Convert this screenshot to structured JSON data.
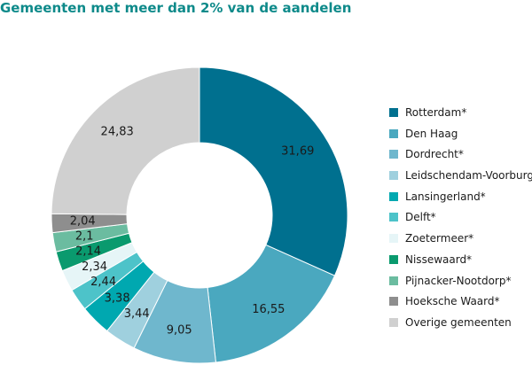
{
  "chart_data": {
    "type": "pie",
    "title": "Gemeenten met meer dan 2% van de aandelen",
    "donut": true,
    "legend_position": "right",
    "slices": [
      {
        "label": "Rotterdam*",
        "value": 31.69,
        "value_label": "31,69",
        "color": "#00708f"
      },
      {
        "label": "Den Haag",
        "value": 16.55,
        "value_label": "16,55",
        "color": "#4aa8bf"
      },
      {
        "label": "Dordrecht*",
        "value": 9.05,
        "value_label": "9,05",
        "color": "#6fb7cd"
      },
      {
        "label": "Leidschendam-Voorburg*",
        "value": 3.44,
        "value_label": "3,44",
        "color": "#9fd0de"
      },
      {
        "label": "Lansingerland*",
        "value": 3.38,
        "value_label": "3,38",
        "color": "#00a8b0"
      },
      {
        "label": "Delft*",
        "value": 2.44,
        "value_label": "2,44",
        "color": "#4dc3c9"
      },
      {
        "label": "Zoetermeer*",
        "value": 2.34,
        "value_label": "2,34",
        "color": "#e6f5f7"
      },
      {
        "label": "Nissewaard*",
        "value": 2.14,
        "value_label": "2,14",
        "color": "#0a9a6e"
      },
      {
        "label": "Pijnacker-Nootdorp*",
        "value": 2.1,
        "value_label": "2,1",
        "color": "#6bbca0"
      },
      {
        "label": "Hoeksche Waard*",
        "value": 2.04,
        "value_label": "2,04",
        "color": "#8e8e8e"
      },
      {
        "label": "Overige gemeenten",
        "value": 24.83,
        "value_label": "24,83",
        "color": "#d0d0d0"
      }
    ]
  }
}
